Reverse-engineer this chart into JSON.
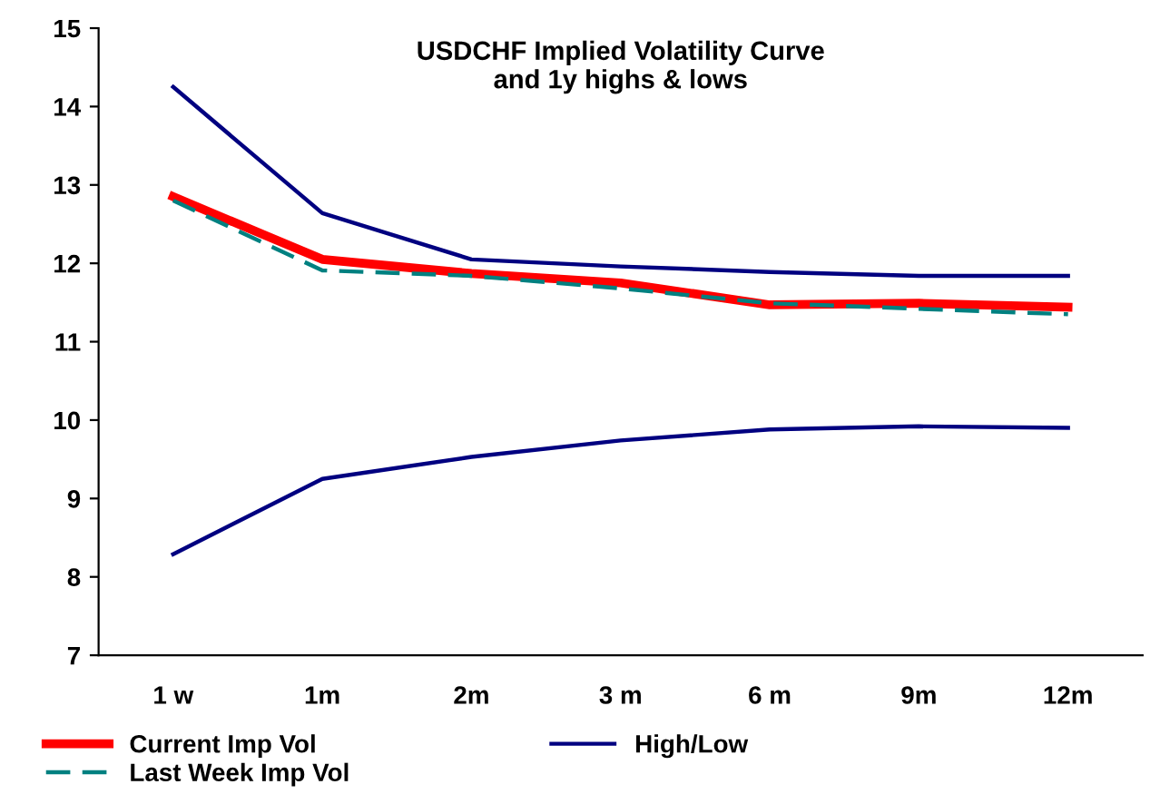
{
  "chart_data": {
    "type": "line",
    "title": "USDCHF Implied Volatility Curve\nand 1y highs & lows",
    "categories": [
      "1 w",
      "1m",
      "2m",
      "3 m",
      "6 m",
      "9m",
      "12m"
    ],
    "series": [
      {
        "name": "Current Imp Vol",
        "color": "#ff0000",
        "values": [
          12.85,
          12.05,
          11.87,
          11.75,
          11.47,
          11.49,
          11.44
        ]
      },
      {
        "name": "Last Week Imp Vol",
        "color": "#008080",
        "line_style": "dashed",
        "values": [
          12.8,
          11.91,
          11.84,
          11.68,
          11.49,
          11.42,
          11.35
        ]
      },
      {
        "name": "High/Low",
        "color": "#000080",
        "values": [
          14.25,
          12.64,
          12.05,
          11.96,
          11.89,
          11.84,
          11.84
        ]
      },
      {
        "color": "#000080",
        "values": [
          8.29,
          9.25,
          9.53,
          9.74,
          9.88,
          9.92,
          9.9
        ]
      }
    ],
    "ylim": [
      7,
      15
    ],
    "yticks": [
      7,
      8,
      9,
      10,
      11,
      12,
      13,
      14,
      15
    ],
    "grid": false,
    "legend": "bottom",
    "marker": "none"
  }
}
